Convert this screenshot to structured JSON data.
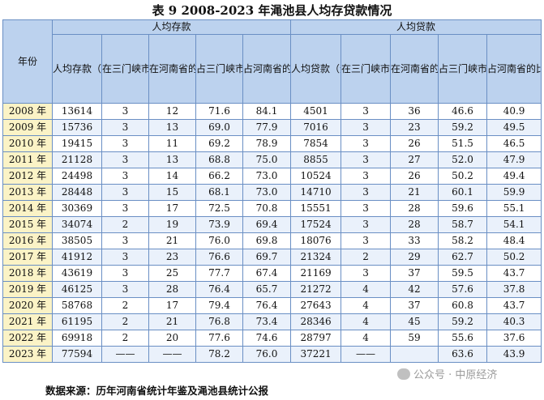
{
  "title": "表 9  2008-2023 年渑池县人均存贷款情况",
  "header": {
    "year": "年份",
    "deposit_group": "人均存款",
    "loan_group": "人均贷款",
    "deposit_cols": [
      "人均存款（元）",
      "在三门峡市的排名",
      "在河南省的排名",
      "占三门峡市的比重（%）",
      "占河南省的比重（%）"
    ],
    "loan_cols": [
      "人均贷款（元）",
      "在三门峡市的排名",
      "在河南省的排名",
      "占三门峡市的比重（%）",
      "占河南省的比重（%）"
    ]
  },
  "rows": [
    {
      "year": "2008 年",
      "d": [
        "13614",
        "3",
        "12",
        "71.6",
        "84.1"
      ],
      "l": [
        "4501",
        "3",
        "36",
        "46.6",
        "40.9"
      ]
    },
    {
      "year": "2009 年",
      "d": [
        "15736",
        "3",
        "13",
        "69.0",
        "77.9"
      ],
      "l": [
        "7016",
        "3",
        "23",
        "59.2",
        "49.5"
      ]
    },
    {
      "year": "2010 年",
      "d": [
        "19415",
        "3",
        "11",
        "69.2",
        "78.9"
      ],
      "l": [
        "7854",
        "3",
        "26",
        "51.5",
        "46.5"
      ]
    },
    {
      "year": "2011 年",
      "d": [
        "21128",
        "3",
        "13",
        "68.8",
        "75.0"
      ],
      "l": [
        "8855",
        "3",
        "27",
        "52.0",
        "47.9"
      ]
    },
    {
      "year": "2012 年",
      "d": [
        "24498",
        "3",
        "14",
        "66.2",
        "73.0"
      ],
      "l": [
        "10524",
        "3",
        "26",
        "50.2",
        "49.4"
      ]
    },
    {
      "year": "2013 年",
      "d": [
        "28448",
        "3",
        "15",
        "68.1",
        "73.0"
      ],
      "l": [
        "14710",
        "3",
        "21",
        "60.1",
        "59.9"
      ]
    },
    {
      "year": "2014 年",
      "d": [
        "30369",
        "3",
        "17",
        "72.5",
        "70.8"
      ],
      "l": [
        "15551",
        "3",
        "28",
        "59.6",
        "55.1"
      ]
    },
    {
      "year": "2015 年",
      "d": [
        "34074",
        "2",
        "19",
        "73.9",
        "69.4"
      ],
      "l": [
        "17524",
        "3",
        "28",
        "58.7",
        "54.1"
      ]
    },
    {
      "year": "2016 年",
      "d": [
        "38505",
        "3",
        "21",
        "76.0",
        "69.8"
      ],
      "l": [
        "18076",
        "3",
        "33",
        "58.2",
        "48.4"
      ]
    },
    {
      "year": "2017 年",
      "d": [
        "41912",
        "3",
        "23",
        "76.6",
        "69.7"
      ],
      "l": [
        "21324",
        "2",
        "29",
        "62.7",
        "50.2"
      ]
    },
    {
      "year": "2018 年",
      "d": [
        "43619",
        "3",
        "25",
        "77.7",
        "67.4"
      ],
      "l": [
        "21169",
        "3",
        "37",
        "59.5",
        "43.7"
      ]
    },
    {
      "year": "2019 年",
      "d": [
        "46125",
        "3",
        "28",
        "76.4",
        "65.7"
      ],
      "l": [
        "21272",
        "4",
        "42",
        "57.6",
        "37.8"
      ]
    },
    {
      "year": "2020 年",
      "d": [
        "58768",
        "2",
        "17",
        "79.4",
        "76.4"
      ],
      "l": [
        "27643",
        "4",
        "37",
        "60.8",
        "43.7"
      ]
    },
    {
      "year": "2021 年",
      "d": [
        "61195",
        "2",
        "21",
        "76.8",
        "73.4"
      ],
      "l": [
        "28346",
        "4",
        "45",
        "59.2",
        "40.3"
      ]
    },
    {
      "year": "2022 年",
      "d": [
        "69918",
        "2",
        "20",
        "77.6",
        "74.6"
      ],
      "l": [
        "28797",
        "4",
        "59",
        "55.6",
        "37.6"
      ]
    },
    {
      "year": "2023 年",
      "d": [
        "77594",
        "——",
        "——",
        "78.2",
        "76.0"
      ],
      "l": [
        "37221",
        "——",
        "",
        "63.6",
        "43.9"
      ]
    }
  ],
  "source": "数据来源：历年河南省统计年鉴及渑池县统计公报",
  "watermark": "公众号 · 中原经济"
}
